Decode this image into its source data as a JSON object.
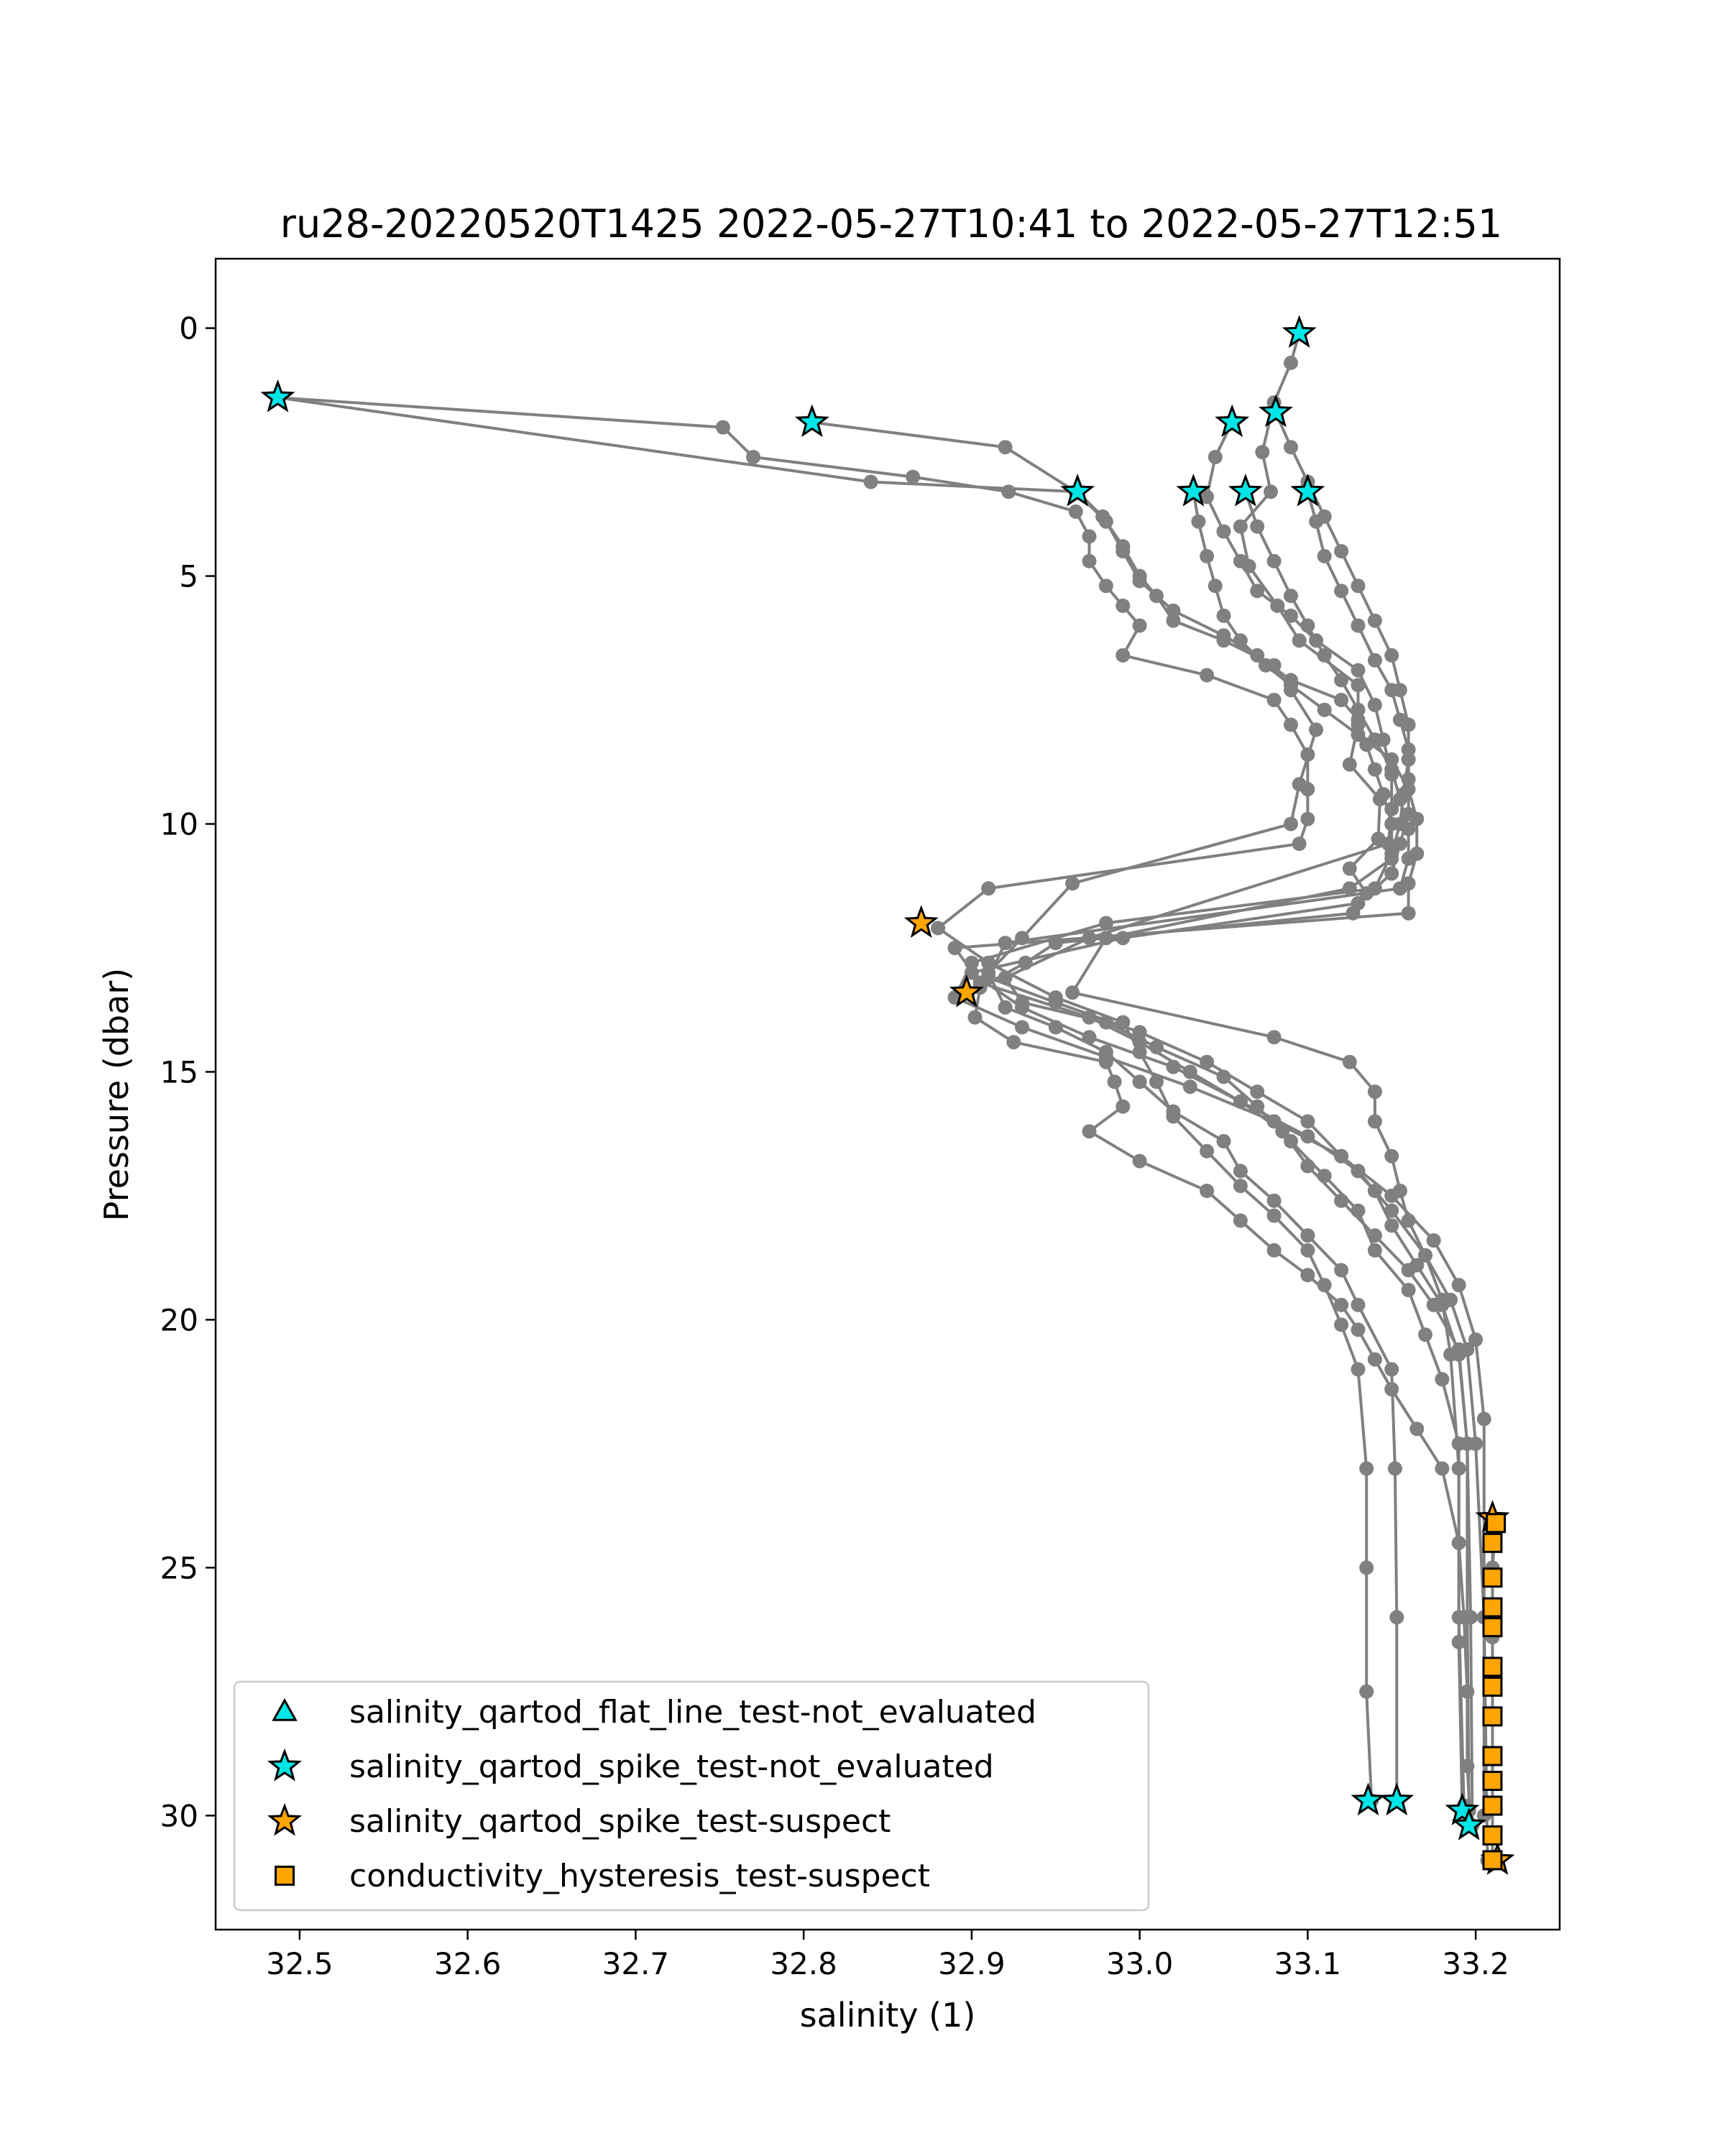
{
  "chart_data": {
    "type": "scatter",
    "title": "ru28-20220520T1425 2022-05-27T10:41 to 2022-05-27T12:51",
    "xlabel": "salinity (1)",
    "ylabel": "Pressure (dbar)",
    "xlim": [
      32.45,
      33.25
    ],
    "ylim": [
      32.3,
      -1.4
    ],
    "y_inverted": true,
    "grid": false,
    "legend_position": "lower-left",
    "x_ticks": [
      32.5,
      32.6,
      32.7,
      32.8,
      32.9,
      33.0,
      33.1,
      33.2
    ],
    "x_tick_labels": [
      "32.5",
      "32.6",
      "32.7",
      "32.8",
      "32.9",
      "33.0",
      "33.1",
      "33.2"
    ],
    "y_ticks": [
      0,
      5,
      10,
      15,
      20,
      25,
      30
    ],
    "y_tick_labels": [
      "0",
      "5",
      "10",
      "15",
      "20",
      "25",
      "30"
    ],
    "colors": {
      "profile_line": "#808080",
      "not_evaluated": "#00e5e5",
      "suspect": "#ffa500",
      "marker_edge": "#000000"
    },
    "profiles": [
      {
        "salinity": [
          33.095,
          33.09,
          33.08,
          33.073,
          33.078,
          33.06,
          33.065,
          33.082,
          33.095,
          33.13,
          33.13,
          33.125,
          33.143,
          33.142,
          33.125,
          33.135,
          33.127,
          32.95,
          32.932,
          32.905,
          32.902,
          32.925,
          32.98,
          32.985,
          32.99,
          32.97,
          33.0,
          33.04,
          33.06,
          33.08,
          33.1,
          33.12,
          33.13,
          33.14,
          33.15,
          33.165,
          33.18,
          33.19,
          33.193,
          33.195,
          33.195,
          33.197
        ],
        "pressure": [
          0.1,
          0.7,
          1.5,
          2.5,
          3.3,
          4.0,
          4.8,
          5.6,
          6.3,
          7.2,
          8.0,
          8.8,
          9.5,
          10.3,
          10.9,
          11.4,
          11.8,
          12.4,
          12.8,
          13.3,
          13.9,
          14.4,
          14.8,
          15.2,
          15.7,
          16.2,
          16.8,
          17.4,
          18.0,
          18.6,
          19.1,
          19.7,
          20.2,
          20.8,
          21.4,
          22.2,
          23.0,
          24.5,
          26.0,
          27.5,
          29.0,
          30.2
        ]
      },
      {
        "salinity": [
          32.487,
          32.752,
          32.77,
          32.865,
          32.922,
          32.962,
          32.97,
          32.97,
          32.98,
          32.99,
          33.0,
          32.99,
          33.04,
          33.08,
          33.09,
          33.1,
          33.1,
          33.1,
          33.095,
          32.91,
          32.88,
          32.91,
          32.95,
          32.99,
          33.0,
          33.01,
          33.02,
          33.04,
          33.06,
          33.08,
          33.1,
          33.11,
          33.12,
          33.13,
          33.135,
          33.135,
          33.135,
          33.138
        ],
        "pressure": [
          1.4,
          2.0,
          2.6,
          3.0,
          3.3,
          3.7,
          4.2,
          4.7,
          5.2,
          5.6,
          6.0,
          6.6,
          7.0,
          7.5,
          8.0,
          8.6,
          9.3,
          9.9,
          10.4,
          11.3,
          12.1,
          12.8,
          13.5,
          14.0,
          14.6,
          15.2,
          15.9,
          16.6,
          17.3,
          17.9,
          18.6,
          19.3,
          20.1,
          21.0,
          23.0,
          25.0,
          27.5,
          29.7
        ]
      },
      {
        "salinity": [
          32.487,
          32.84,
          32.963,
          32.978,
          32.99,
          33.0,
          33.01,
          33.02,
          33.05,
          33.08,
          33.09,
          33.105,
          33.095,
          33.09,
          32.96,
          32.93,
          32.91,
          32.92,
          32.95,
          32.98,
          33.0,
          33.02,
          33.05,
          33.06,
          33.08,
          33.1,
          33.12,
          33.13,
          33.15,
          33.152,
          33.153,
          33.153
        ],
        "pressure": [
          1.4,
          3.1,
          3.3,
          3.8,
          4.4,
          5.0,
          5.4,
          5.9,
          6.3,
          6.8,
          7.3,
          8.1,
          9.2,
          10.0,
          11.2,
          12.3,
          13.0,
          13.7,
          14.1,
          14.6,
          15.2,
          15.8,
          16.4,
          17.0,
          17.6,
          18.3,
          19.0,
          19.7,
          21.0,
          23.0,
          26.0,
          29.7
        ]
      },
      {
        "salinity": [
          32.805,
          32.92,
          32.962,
          32.98,
          32.99,
          33.0,
          33.02,
          33.05,
          33.07,
          33.09,
          33.12,
          33.13,
          33.135,
          33.14,
          33.145,
          33.15,
          33.15,
          33.125,
          32.98,
          32.96,
          33.08,
          33.125,
          33.14,
          33.14,
          33.15,
          33.155,
          33.16,
          33.17,
          33.18,
          33.185,
          33.19,
          33.19,
          33.192
        ],
        "pressure": [
          1.9,
          2.4,
          3.3,
          3.9,
          4.5,
          5.1,
          5.7,
          6.2,
          6.6,
          7.1,
          7.5,
          7.9,
          8.4,
          8.9,
          9.4,
          10.0,
          10.7,
          11.3,
          12.3,
          13.4,
          14.3,
          14.8,
          15.4,
          16.0,
          16.7,
          17.4,
          18.0,
          18.7,
          19.6,
          20.7,
          23.0,
          26.5,
          29.9
        ]
      },
      {
        "salinity": [
          33.055,
          33.045,
          33.04,
          33.05,
          33.06,
          33.07,
          33.09,
          33.105,
          33.13,
          33.14,
          33.145,
          33.15,
          33.15,
          33.148,
          32.97,
          32.92,
          32.93,
          32.98,
          33.01,
          33.05,
          33.07,
          33.09,
          33.11,
          33.13,
          33.14,
          33.16,
          33.17,
          33.18,
          33.19,
          33.19,
          33.193
        ],
        "pressure": [
          1.9,
          2.6,
          3.4,
          4.1,
          4.7,
          5.3,
          5.8,
          6.3,
          6.9,
          7.6,
          8.3,
          9.0,
          9.7,
          10.4,
          12.3,
          13.1,
          13.6,
          14.0,
          14.5,
          15.1,
          15.7,
          16.4,
          17.1,
          17.8,
          18.6,
          19.4,
          20.3,
          21.2,
          22.5,
          26.0,
          29.8
        ]
      },
      {
        "salinity": [
          33.032,
          33.035,
          33.04,
          33.045,
          33.05,
          33.06,
          33.075,
          33.09,
          33.11,
          33.13,
          33.15,
          33.16,
          33.165,
          33.165,
          33.16,
          33.16,
          32.89,
          32.905,
          32.97,
          33.0,
          33.03,
          33.06,
          33.085,
          33.1,
          33.12,
          33.14,
          33.16,
          33.175,
          33.19,
          33.195,
          33.195,
          33.196
        ],
        "pressure": [
          3.3,
          3.9,
          4.6,
          5.2,
          5.8,
          6.3,
          6.8,
          7.2,
          7.7,
          8.2,
          8.7,
          9.3,
          9.9,
          10.6,
          11.2,
          11.8,
          12.5,
          13.2,
          13.9,
          14.4,
          15.0,
          15.6,
          16.2,
          16.9,
          17.6,
          18.3,
          19.0,
          19.7,
          20.6,
          22.5,
          26.0,
          29.9
        ]
      },
      {
        "salinity": [
          33.063,
          33.07,
          33.08,
          33.09,
          33.1,
          33.11,
          33.12,
          33.13,
          33.14,
          33.15,
          33.155,
          33.16,
          33.16,
          33.155,
          32.92,
          32.91,
          32.95,
          33.0,
          33.04,
          33.07,
          33.1,
          33.12,
          33.14,
          33.15,
          33.165,
          33.18,
          33.19,
          33.195,
          33.197,
          33.198
        ],
        "pressure": [
          3.3,
          4.0,
          4.7,
          5.4,
          6.0,
          6.6,
          7.1,
          7.7,
          8.3,
          8.9,
          9.5,
          10.1,
          10.7,
          11.3,
          12.4,
          13.1,
          13.6,
          14.2,
          14.8,
          15.4,
          16.0,
          16.7,
          17.4,
          18.1,
          18.9,
          19.7,
          20.7,
          22.5,
          26.0,
          30.2
        ]
      },
      {
        "salinity": [
          33.1,
          33.105,
          33.11,
          33.12,
          33.13,
          33.14,
          33.15,
          33.155,
          33.16,
          33.16,
          33.16,
          33.155,
          33.15,
          33.13,
          32.99,
          32.9,
          32.93,
          32.97,
          33.02,
          33.06,
          33.1,
          33.13,
          33.15,
          33.17,
          33.185,
          33.195,
          33.2,
          33.205,
          33.205
        ],
        "pressure": [
          3.3,
          3.9,
          4.6,
          5.3,
          6.0,
          6.7,
          7.3,
          7.9,
          8.5,
          9.1,
          9.8,
          10.4,
          11.0,
          11.6,
          12.3,
          13.0,
          13.7,
          14.3,
          14.9,
          15.6,
          16.3,
          17.0,
          17.8,
          18.7,
          19.6,
          20.6,
          22.5,
          26.0,
          30.0
        ]
      },
      {
        "salinity": [
          33.081,
          33.09,
          33.1,
          33.11,
          33.12,
          33.13,
          33.14,
          33.15,
          33.155,
          33.16,
          33.16,
          33.157,
          33.155,
          33.15,
          33.14,
          32.98,
          32.9,
          32.89,
          32.93,
          32.98,
          33.03,
          33.08,
          33.12,
          33.15,
          33.175,
          33.19,
          33.2,
          33.205,
          33.205,
          33.207
        ],
        "pressure": [
          1.7,
          2.4,
          3.1,
          3.8,
          4.5,
          5.2,
          5.9,
          6.6,
          7.3,
          8.0,
          8.7,
          9.4,
          10.0,
          10.6,
          11.3,
          12.0,
          12.8,
          13.5,
          14.1,
          14.7,
          15.3,
          16.0,
          16.7,
          17.5,
          18.4,
          19.3,
          20.4,
          22.0,
          26.0,
          30.9
        ]
      },
      {
        "salinity": [
          33.21,
          33.21,
          33.21,
          33.21,
          33.21,
          33.21,
          33.21,
          33.21,
          33.21,
          33.21,
          33.21,
          33.21,
          33.21,
          33.21,
          33.21,
          33.21,
          33.212
        ],
        "pressure": [
          24.0,
          24.5,
          25.2,
          25.8,
          26.2,
          27.0,
          27.4,
          28.0,
          28.8,
          29.3,
          29.8,
          30.4,
          30.9,
          27.0,
          26.4,
          25.0,
          24.1
        ]
      }
    ],
    "series": [
      {
        "name": "salinity_qartod_flat_line_test-not_evaluated",
        "marker": "triangle",
        "color": "#00e5e5",
        "salinity": [],
        "pressure": []
      },
      {
        "name": "salinity_qartod_spike_test-not_evaluated",
        "marker": "star",
        "color": "#00e5e5",
        "salinity": [
          33.095,
          32.487,
          32.805,
          33.055,
          33.081,
          32.963,
          33.032,
          33.063,
          33.1,
          33.136,
          33.153,
          33.192,
          33.196
        ],
        "pressure": [
          0.1,
          1.4,
          1.9,
          1.9,
          1.7,
          3.3,
          3.3,
          3.3,
          3.3,
          29.7,
          29.7,
          29.9,
          30.2
        ]
      },
      {
        "name": "salinity_qartod_spike_test-suspect",
        "marker": "star",
        "color": "#ffa500",
        "salinity": [
          32.87,
          32.897,
          33.21,
          33.213
        ],
        "pressure": [
          12.0,
          13.4,
          24.0,
          30.9
        ]
      },
      {
        "name": "conductivity_hysteresis_test-suspect",
        "marker": "square",
        "color": "#ffa500",
        "salinity": [
          33.21,
          33.21,
          33.21,
          33.21,
          33.21,
          33.21,
          33.21,
          33.21,
          33.21,
          33.21,
          33.21,
          33.21,
          33.212
        ],
        "pressure": [
          24.5,
          25.2,
          25.8,
          26.2,
          27.0,
          27.4,
          28.0,
          28.8,
          29.3,
          29.8,
          30.4,
          30.9,
          24.1
        ]
      }
    ]
  }
}
